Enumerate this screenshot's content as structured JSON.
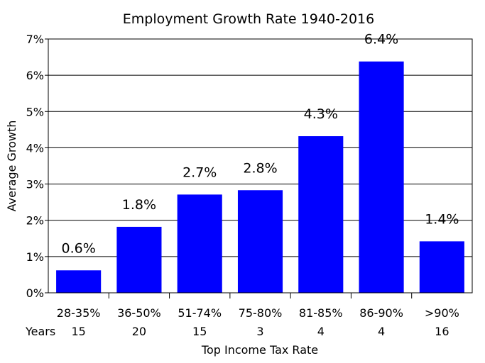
{
  "chart_data": {
    "type": "bar",
    "title": "Employment Growth Rate 1940-2016",
    "xlabel": "Top Income Tax Rate",
    "ylabel": "Average Growth",
    "categories": [
      "28-35%",
      "36-50%",
      "51-74%",
      "75-80%",
      "81-85%",
      "86-90%",
      ">90%"
    ],
    "values": [
      0.62,
      1.82,
      2.71,
      2.83,
      4.32,
      6.38,
      1.42
    ],
    "value_labels": [
      "0.6%",
      "1.8%",
      "2.7%",
      "2.8%",
      "4.3%",
      "6.4%",
      "1.4%"
    ],
    "years_label": "Years",
    "years": [
      "15",
      "20",
      "15",
      "3",
      "4",
      "4",
      "16"
    ],
    "yticks": [
      0,
      1,
      2,
      3,
      4,
      5,
      6,
      7
    ],
    "ytick_labels": [
      "0%",
      "1%",
      "2%",
      "3%",
      "4%",
      "5%",
      "6%",
      "7%"
    ],
    "ylim": [
      0,
      7
    ],
    "grid": "horizontal",
    "bar_color": "#0000ff"
  }
}
